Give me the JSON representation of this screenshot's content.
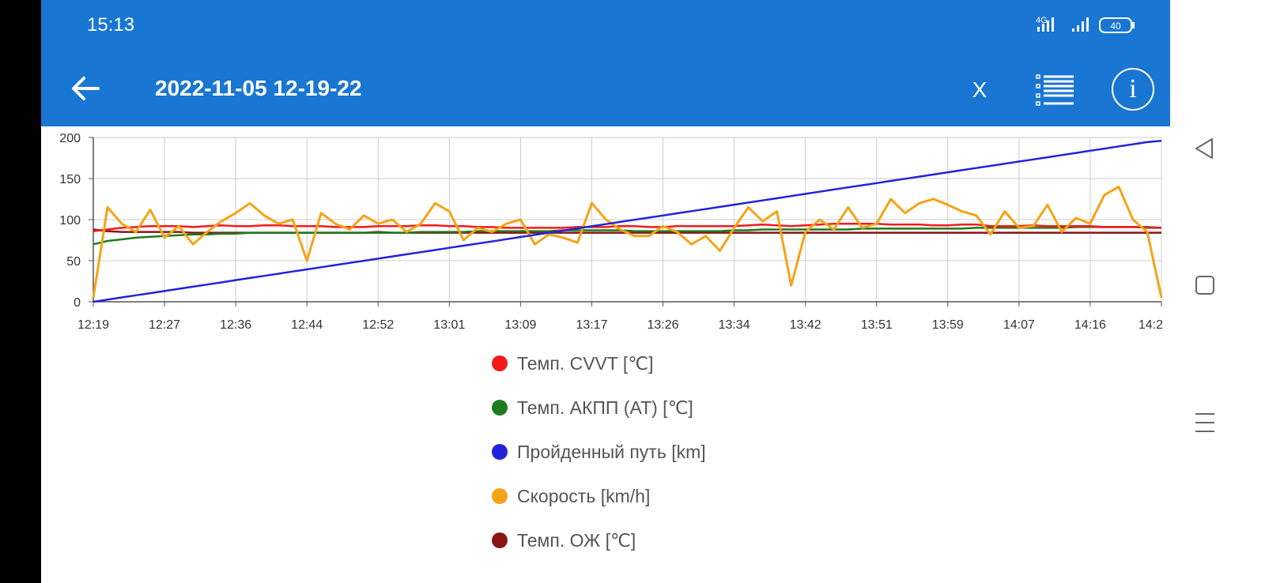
{
  "status_bar": {
    "time": "15:13",
    "network": "4G",
    "battery": "40"
  },
  "toolbar": {
    "title": "2022-11-05 12-19-22",
    "close_label": "X"
  },
  "colors": {
    "appbar": "#1976d2",
    "cvvt": "#f41a1a",
    "at": "#1e7a1e",
    "distance": "#2222dd",
    "speed": "#f5a316",
    "coolant": "#8b1414"
  },
  "chart_data": {
    "type": "line",
    "ylim": [
      0,
      200
    ],
    "yticks": [
      "0",
      "50",
      "100",
      "150",
      "200"
    ],
    "x_tick_labels": [
      "12:19",
      "12:27",
      "12:36",
      "12:44",
      "12:52",
      "13:01",
      "13:09",
      "13:17",
      "13:26",
      "13:34",
      "13:42",
      "13:51",
      "13:59",
      "14:07",
      "14:16",
      "14:2"
    ],
    "grid": true,
    "legend_position": "bottom",
    "series": [
      {
        "name": "Темп. CVVT [℃]",
        "color": "#f41a1a",
        "values": [
          86,
          88,
          90,
          91,
          92,
          92,
          92,
          91,
          92,
          93,
          92,
          92,
          93,
          93,
          92,
          92,
          92,
          91,
          91,
          91,
          92,
          92,
          92,
          93,
          93,
          92,
          92,
          91,
          91,
          90,
          90,
          90,
          90,
          90,
          91,
          91,
          91,
          92,
          92,
          91,
          91,
          92,
          92,
          92,
          92,
          92,
          93,
          94,
          93,
          92,
          93,
          94,
          95,
          95,
          95,
          95,
          94,
          94,
          94,
          93,
          93,
          94,
          94,
          92,
          92,
          92,
          93,
          92,
          92,
          92,
          92,
          91,
          91,
          91,
          90,
          90
        ]
      },
      {
        "name": "Темп. АКПП (AT) [℃]",
        "color": "#1e7a1e",
        "values": [
          70,
          74,
          76,
          78,
          79,
          80,
          81,
          82,
          82,
          83,
          83,
          84,
          84,
          84,
          84,
          84,
          84,
          84,
          84,
          84,
          84,
          84,
          84,
          85,
          85,
          85,
          85,
          86,
          86,
          86,
          86,
          86,
          86,
          87,
          87,
          87,
          87,
          87,
          86,
          86,
          86,
          86,
          86,
          86,
          86,
          87,
          87,
          88,
          88,
          88,
          88,
          88,
          88,
          88,
          89,
          89,
          89,
          89,
          89,
          89,
          89,
          89,
          90,
          90,
          90,
          90,
          90,
          90,
          90,
          91,
          91,
          91,
          91,
          91,
          91,
          90
        ]
      },
      {
        "name": "Пройденный путь [km]",
        "color": "#2222dd",
        "values": [
          0,
          2.6,
          5.3,
          7.9,
          10.5,
          13.1,
          15.8,
          18.4,
          21,
          23.6,
          26.3,
          28.9,
          31.5,
          34.1,
          36.8,
          39.4,
          42,
          44.7,
          47.3,
          49.9,
          52.5,
          55.2,
          57.8,
          60.4,
          63,
          65.7,
          68.3,
          70.9,
          73.5,
          76.2,
          78.8,
          81.4,
          84,
          86.7,
          89.3,
          91.9,
          94.5,
          97.2,
          99.8,
          102.4,
          105,
          107.7,
          110.3,
          112.9,
          115.5,
          118.2,
          120.8,
          123.4,
          126,
          128.7,
          131.3,
          133.9,
          136.6,
          139.2,
          141.8,
          144.4,
          147.1,
          149.7,
          152.3,
          154.9,
          157.6,
          160.2,
          162.8,
          165.4,
          168.1,
          170.7,
          173.3,
          175.9,
          178.6,
          181.2,
          183.8,
          186.4,
          189.1,
          191.7,
          194.3,
          196
        ]
      },
      {
        "name": "Скорость [km/h]",
        "color": "#f5a316",
        "values": [
          5,
          115,
          95,
          85,
          112,
          78,
          92,
          70,
          85,
          98,
          108,
          120,
          105,
          95,
          100,
          50,
          108,
          95,
          88,
          105,
          95,
          100,
          85,
          95,
          120,
          110,
          75,
          90,
          85,
          95,
          100,
          70,
          82,
          78,
          72,
          120,
          100,
          88,
          80,
          80,
          92,
          85,
          70,
          80,
          62,
          90,
          115,
          98,
          110,
          20,
          85,
          100,
          88,
          115,
          90,
          95,
          125,
          108,
          120,
          125,
          118,
          110,
          105,
          82,
          110,
          90,
          92,
          118,
          85,
          102,
          95,
          130,
          140,
          100,
          85,
          5
        ]
      },
      {
        "name": "Темп. ОЖ [℃]",
        "color": "#8b1414",
        "values": [
          88,
          86,
          85,
          85,
          85,
          85,
          85,
          84,
          84,
          84,
          84,
          84,
          84,
          84,
          84,
          84,
          84,
          84,
          84,
          84,
          85,
          84,
          84,
          84,
          84,
          84,
          84,
          84,
          84,
          84,
          84,
          84,
          84,
          84,
          84,
          84,
          84,
          84,
          84,
          84,
          84,
          84,
          84,
          84,
          84,
          84,
          84,
          84,
          84,
          84,
          84,
          84,
          84,
          84,
          84,
          84,
          84,
          84,
          84,
          84,
          84,
          84,
          84,
          84,
          84,
          84,
          84,
          84,
          84,
          84,
          84,
          84,
          84,
          84,
          84,
          84
        ]
      }
    ]
  }
}
